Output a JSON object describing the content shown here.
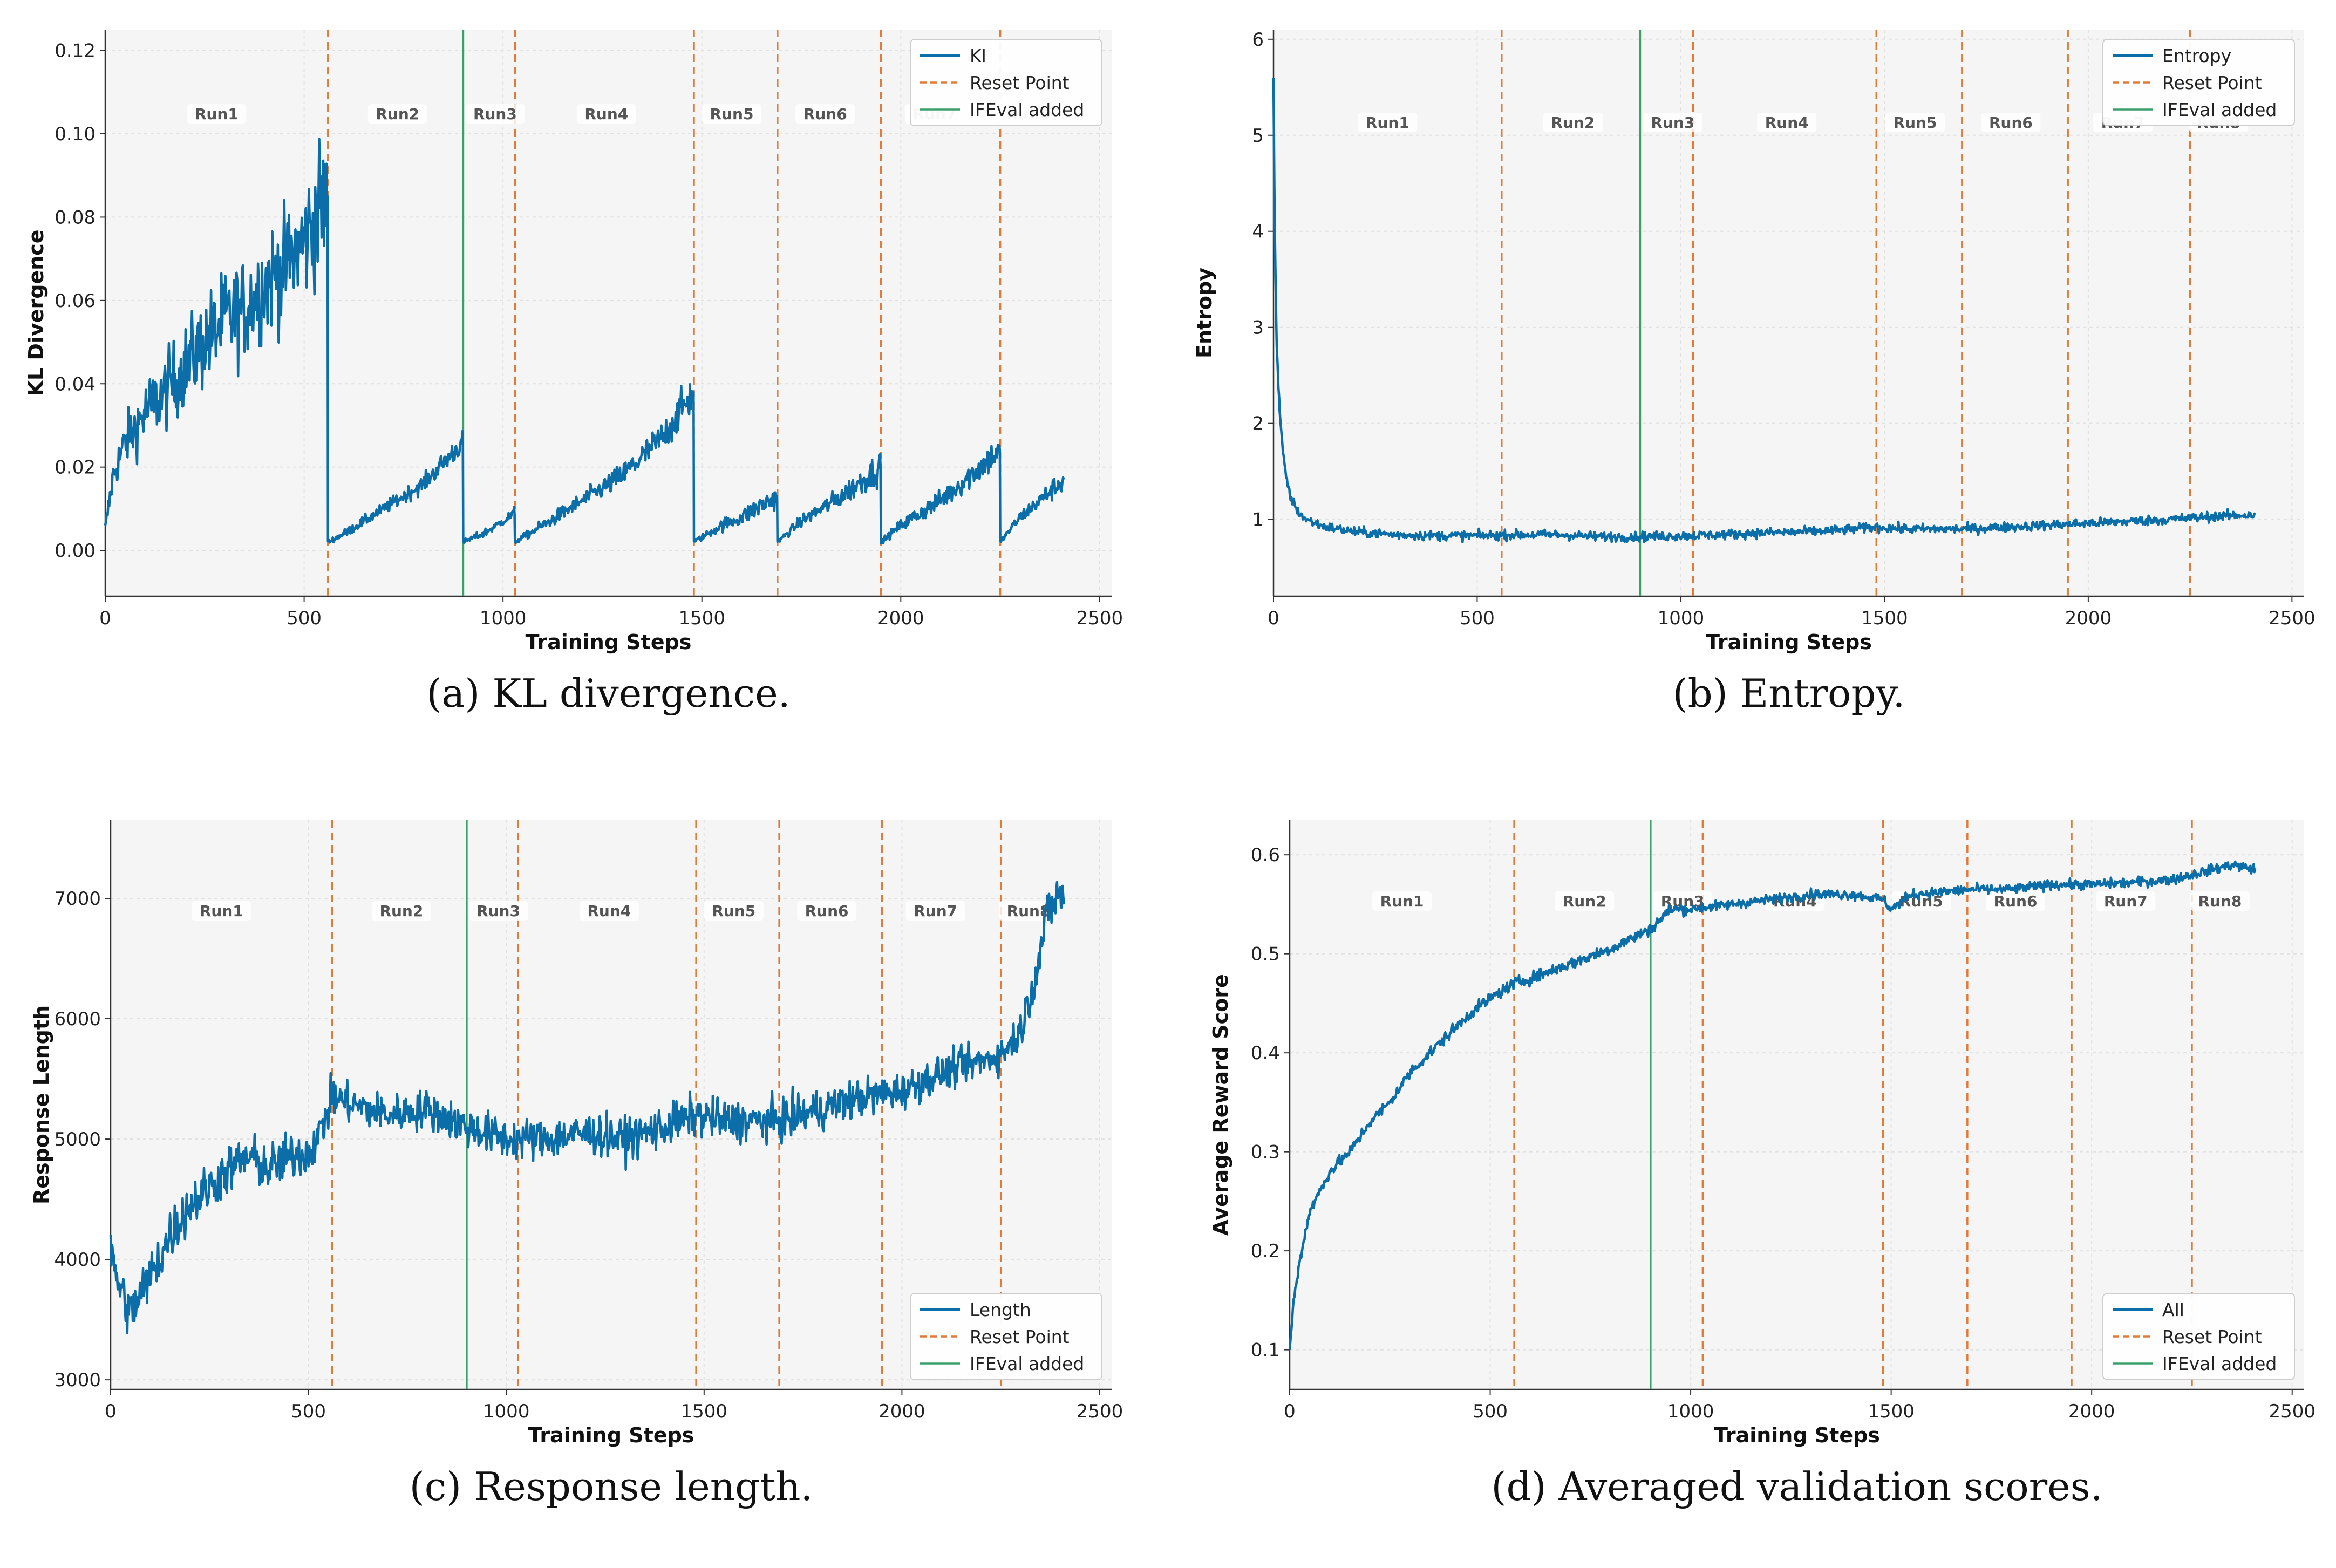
{
  "common": {
    "xlabel": "Training Steps",
    "x_ticks": [
      0,
      500,
      1000,
      1500,
      2000,
      2500
    ],
    "xlim": [
      0,
      2530
    ],
    "reset_points": [
      560,
      1030,
      1480,
      1690,
      1950,
      2250
    ],
    "ifeval_added": 900,
    "run_labels": [
      "Run1",
      "Run2",
      "Run3",
      "Run4",
      "Run5",
      "Run6",
      "Run7",
      "Run8"
    ],
    "run_label_x": [
      280,
      735,
      980,
      1260,
      1575,
      1810,
      2085,
      2320
    ],
    "colors": {
      "series": "#0c6ea8",
      "reset": "#e07b39",
      "ifeval": "#3a9f6a",
      "plot_bg": "#f5f5f5",
      "grid": "#e2e2e2"
    }
  },
  "chart_data": [
    {
      "id": "a",
      "type": "line",
      "caption": "(a) KL divergence.",
      "ylabel": "KL Divergence",
      "ylim": [
        -0.011,
        0.125
      ],
      "y_ticks": [
        0.0,
        0.02,
        0.04,
        0.06,
        0.08,
        0.1,
        0.12
      ],
      "y_tick_labels": [
        "0.00",
        "0.02",
        "0.04",
        "0.06",
        "0.08",
        "0.10",
        "0.12"
      ],
      "run_label_y": 0.104,
      "legend": {
        "position": "top-right",
        "series_label": "Kl",
        "reset_label": "Reset Point",
        "ifeval_label": "IFEval added"
      },
      "grid": true,
      "series": [
        {
          "name": "Kl",
          "x": [
            0,
            20,
            50,
            100,
            150,
            200,
            250,
            300,
            350,
            400,
            450,
            500,
            540,
            559,
            560,
            600,
            700,
            800,
            899,
            900,
            950,
            1000,
            1029,
            1030,
            1100,
            1200,
            1300,
            1400,
            1479,
            1480,
            1550,
            1600,
            1689,
            1690,
            1750,
            1850,
            1949,
            1950,
            2000,
            2100,
            2249,
            2250,
            2300,
            2350,
            2410
          ],
          "y": [
            0.005,
            0.018,
            0.026,
            0.033,
            0.038,
            0.044,
            0.05,
            0.055,
            0.058,
            0.064,
            0.068,
            0.074,
            0.082,
            0.085,
            0.002,
            0.004,
            0.01,
            0.016,
            0.026,
            0.002,
            0.004,
            0.007,
            0.009,
            0.002,
            0.006,
            0.012,
            0.018,
            0.027,
            0.038,
            0.002,
            0.006,
            0.008,
            0.013,
            0.002,
            0.007,
            0.013,
            0.02,
            0.002,
            0.006,
            0.012,
            0.024,
            0.002,
            0.008,
            0.012,
            0.017
          ],
          "noise": [
            0.002,
            0.004,
            0.006,
            0.008,
            0.009,
            0.01,
            0.011,
            0.012,
            0.012,
            0.013,
            0.013,
            0.014,
            0.016,
            0.016,
            0.0005,
            0.001,
            0.0015,
            0.002,
            0.003,
            0.0005,
            0.001,
            0.001,
            0.0015,
            0.0005,
            0.0015,
            0.002,
            0.003,
            0.004,
            0.005,
            0.0005,
            0.0015,
            0.002,
            0.003,
            0.0005,
            0.0015,
            0.0025,
            0.004,
            0.0005,
            0.0015,
            0.0025,
            0.004,
            0.0005,
            0.0015,
            0.002,
            0.003
          ]
        }
      ]
    },
    {
      "id": "b",
      "type": "line",
      "caption": "(b) Entropy.",
      "ylabel": "Entropy",
      "ylim": [
        0.2,
        6.1
      ],
      "y_ticks": [
        1,
        2,
        3,
        4,
        5,
        6
      ],
      "y_tick_labels": [
        "1",
        "2",
        "3",
        "4",
        "5",
        "6"
      ],
      "run_label_y": 5.1,
      "legend": {
        "position": "top-right",
        "series_label": "Entropy",
        "reset_label": "Reset Point",
        "ifeval_label": "IFEval added"
      },
      "grid": true,
      "series": [
        {
          "name": "Entropy",
          "x": [
            0,
            3,
            8,
            15,
            25,
            40,
            60,
            80,
            120,
            200,
            300,
            400,
            500,
            600,
            700,
            800,
            900,
            1000,
            1100,
            1200,
            1300,
            1400,
            1480,
            1550,
            1700,
            1800,
            1900,
            2000,
            2100,
            2200,
            2300,
            2410
          ],
          "y": [
            5.6,
            4.0,
            2.8,
            2.1,
            1.6,
            1.25,
            1.08,
            1.0,
            0.93,
            0.87,
            0.84,
            0.83,
            0.83,
            0.84,
            0.84,
            0.82,
            0.82,
            0.83,
            0.84,
            0.86,
            0.87,
            0.89,
            0.92,
            0.9,
            0.9,
            0.92,
            0.94,
            0.96,
            0.98,
            1.0,
            1.03,
            1.05
          ],
          "noise": [
            0.0,
            0.1,
            0.1,
            0.08,
            0.06,
            0.05,
            0.05,
            0.05,
            0.05,
            0.05,
            0.05,
            0.05,
            0.05,
            0.05,
            0.05,
            0.05,
            0.05,
            0.05,
            0.05,
            0.05,
            0.05,
            0.05,
            0.05,
            0.05,
            0.05,
            0.05,
            0.05,
            0.05,
            0.05,
            0.05,
            0.05,
            0.05
          ]
        }
      ]
    },
    {
      "id": "c",
      "type": "line",
      "caption": "(c) Response length.",
      "ylabel": "Response Length",
      "ylim": [
        2920,
        7650
      ],
      "y_ticks": [
        3000,
        4000,
        5000,
        6000,
        7000
      ],
      "y_tick_labels": [
        "3000",
        "4000",
        "5000",
        "6000",
        "7000"
      ],
      "run_label_y": 6870,
      "legend": {
        "position": "bottom-right",
        "series_label": "Length",
        "reset_label": "Reset Point",
        "ifeval_label": "IFEval added"
      },
      "grid": true,
      "series": [
        {
          "name": "Length",
          "x": [
            0,
            20,
            50,
            100,
            150,
            200,
            250,
            300,
            350,
            400,
            450,
            500,
            530,
            560,
            600,
            700,
            800,
            900,
            1000,
            1100,
            1200,
            1300,
            1400,
            1480,
            1550,
            1690,
            1800,
            1900,
            2000,
            2100,
            2200,
            2250,
            2300,
            2340,
            2370,
            2400,
            2410
          ],
          "y": [
            4050,
            3800,
            3550,
            3850,
            4200,
            4450,
            4600,
            4750,
            4850,
            4750,
            4850,
            4900,
            5050,
            5350,
            5300,
            5200,
            5250,
            5100,
            5000,
            5000,
            5050,
            5000,
            5100,
            5200,
            5150,
            5150,
            5250,
            5350,
            5400,
            5550,
            5650,
            5700,
            5900,
            6400,
            6900,
            7050,
            6950
          ],
          "noise": [
            200,
            200,
            220,
            220,
            220,
            200,
            200,
            200,
            200,
            200,
            200,
            200,
            180,
            180,
            160,
            160,
            160,
            170,
            170,
            170,
            170,
            170,
            170,
            170,
            170,
            170,
            170,
            160,
            150,
            150,
            140,
            140,
            160,
            180,
            200,
            180,
            180
          ]
        }
      ]
    },
    {
      "id": "d",
      "type": "line",
      "caption": "(d) Averaged validation scores.",
      "ylabel": "Average Reward Score",
      "ylim": [
        0.06,
        0.635
      ],
      "y_ticks": [
        0.1,
        0.2,
        0.3,
        0.4,
        0.5,
        0.6
      ],
      "y_tick_labels": [
        "0.1",
        "0.2",
        "0.3",
        "0.4",
        "0.5",
        "0.6"
      ],
      "run_label_y": 0.55,
      "legend": {
        "position": "bottom-right",
        "series_label": "All",
        "reset_label": "Reset Point",
        "ifeval_label": "IFEval added"
      },
      "grid": true,
      "series": [
        {
          "name": "All",
          "x": [
            0,
            10,
            25,
            50,
            100,
            150,
            200,
            250,
            300,
            350,
            400,
            450,
            500,
            560,
            600,
            700,
            800,
            900,
            950,
            1000,
            1100,
            1200,
            1300,
            1400,
            1480,
            1500,
            1550,
            1700,
            1800,
            1900,
            2000,
            2100,
            2200,
            2300,
            2350,
            2410
          ],
          "y": [
            0.1,
            0.15,
            0.19,
            0.24,
            0.28,
            0.3,
            0.33,
            0.35,
            0.38,
            0.4,
            0.42,
            0.44,
            0.455,
            0.47,
            0.475,
            0.49,
            0.505,
            0.525,
            0.545,
            0.545,
            0.55,
            0.555,
            0.56,
            0.56,
            0.555,
            0.545,
            0.56,
            0.565,
            0.565,
            0.57,
            0.57,
            0.572,
            0.575,
            0.585,
            0.59,
            0.585
          ],
          "noise": [
            0.0,
            0.005,
            0.005,
            0.006,
            0.006,
            0.006,
            0.006,
            0.006,
            0.006,
            0.006,
            0.006,
            0.006,
            0.006,
            0.006,
            0.006,
            0.006,
            0.006,
            0.006,
            0.006,
            0.005,
            0.005,
            0.005,
            0.005,
            0.005,
            0.005,
            0.005,
            0.005,
            0.005,
            0.005,
            0.005,
            0.005,
            0.005,
            0.005,
            0.005,
            0.005,
            0.005
          ]
        }
      ]
    }
  ]
}
